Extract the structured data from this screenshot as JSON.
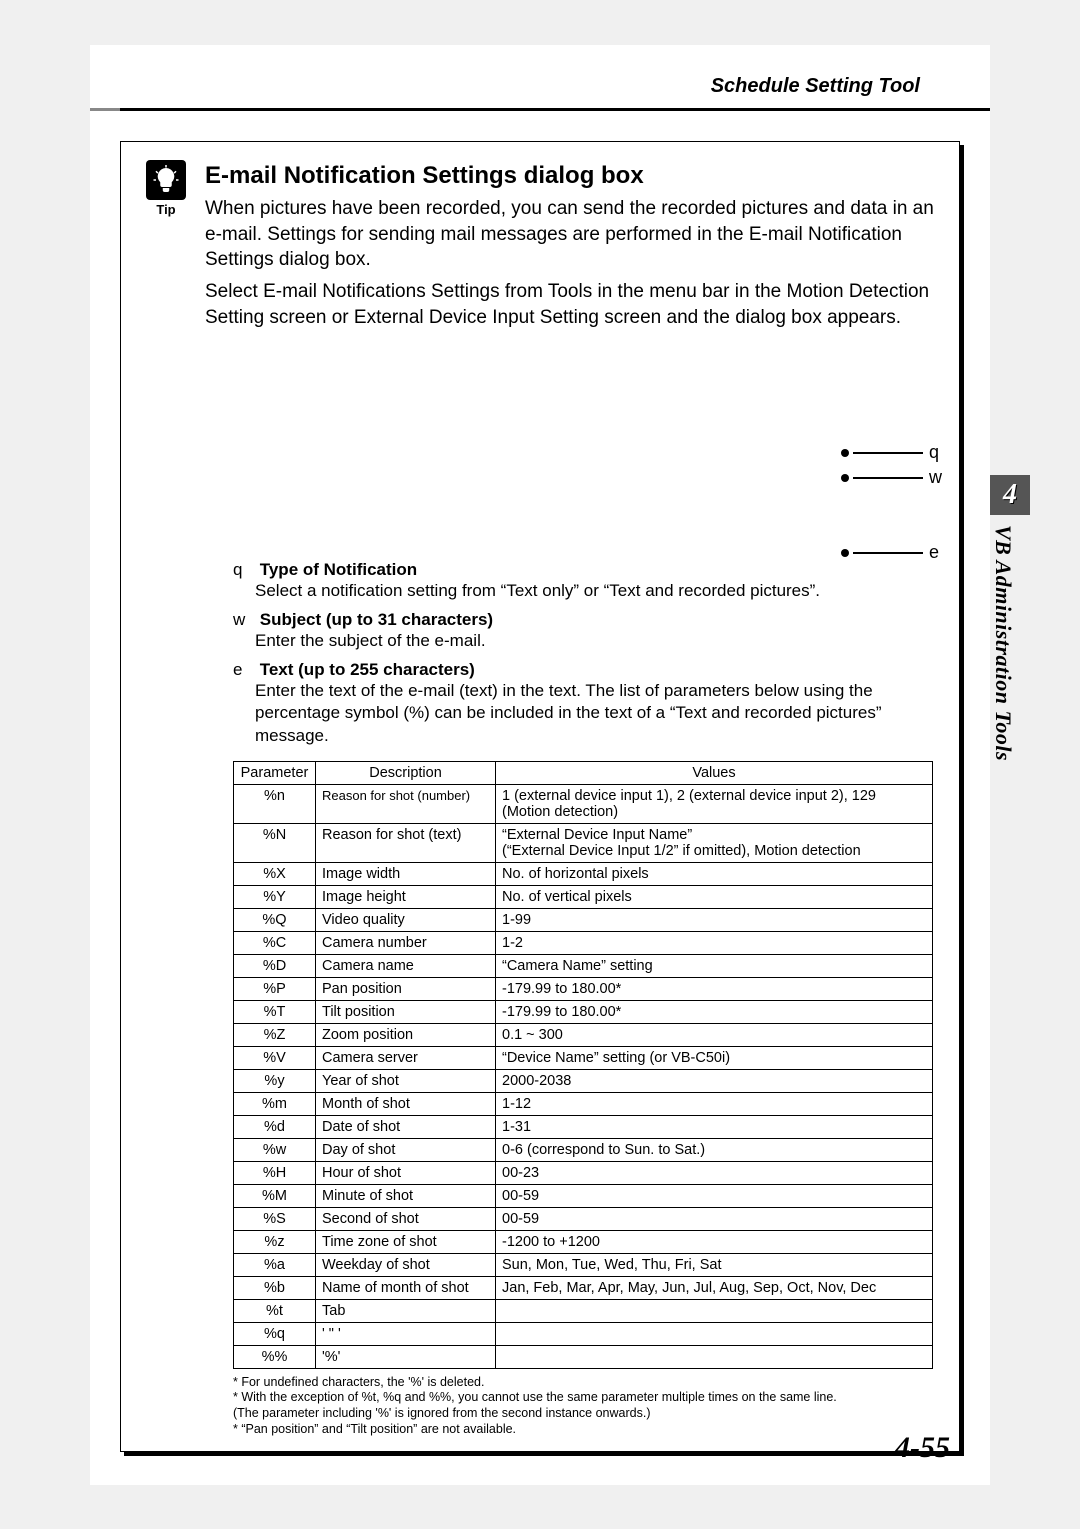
{
  "header": {
    "title": "Schedule Setting Tool"
  },
  "tip": {
    "label": "Tip"
  },
  "section": {
    "title": "E-mail Notification Settings dialog box",
    "p1": "When pictures have been recorded, you can send the recorded pictures and data in an e-mail. Settings for sending mail messages are performed in the E-mail Notification Settings dialog box.",
    "p2": "Select E-mail Notifications Settings from Tools in the menu bar in the Motion Detection Setting screen or External Device Input Setting screen and the dialog box appears."
  },
  "pointers": {
    "q": "q",
    "w": "w",
    "e": "e"
  },
  "params": {
    "q_mark": "q",
    "q_head": "Type of Notification",
    "q_desc": "Select a notification setting from “Text only” or “Text and recorded pictures”.",
    "w_mark": "w",
    "w_head": "Subject (up to 31 characters)",
    "w_desc": "Enter the subject of the e-mail.",
    "e_mark": "e",
    "e_head": "Text (up to 255 characters)",
    "e_desc": "Enter the text of the e-mail (text) in the text. The list of parameters below using the percentage symbol (%) can be included in the text of a “Text and recorded pictures” message."
  },
  "table": {
    "h1": "Parameter",
    "h2": "Description",
    "h3": "Values",
    "rows": [
      {
        "p": "%n",
        "d": "Reason for shot (number)",
        "v": "1 (external device input 1), 2 (external device input 2), 129 (Motion detection)"
      },
      {
        "p": "%N",
        "d": "Reason for shot (text)",
        "v": "“External Device Input Name”\n(“External Device Input 1/2” if omitted), Motion detection"
      },
      {
        "p": "%X",
        "d": "Image width",
        "v": "No. of horizontal pixels"
      },
      {
        "p": "%Y",
        "d": "Image height",
        "v": "No. of vertical pixels"
      },
      {
        "p": "%Q",
        "d": "Video quality",
        "v": "1-99"
      },
      {
        "p": "%C",
        "d": "Camera number",
        "v": "1-2"
      },
      {
        "p": "%D",
        "d": "Camera name",
        "v": "“Camera Name” setting"
      },
      {
        "p": "%P",
        "d": "Pan position",
        "v": "-179.99 to 180.00*"
      },
      {
        "p": "%T",
        "d": "Tilt position",
        "v": "-179.99 to 180.00*"
      },
      {
        "p": "%Z",
        "d": "Zoom position",
        "v": "0.1 ~ 300"
      },
      {
        "p": "%V",
        "d": "Camera server",
        "v": "“Device Name” setting (or VB-C50i)"
      },
      {
        "p": "%y",
        "d": "Year of shot",
        "v": "2000-2038"
      },
      {
        "p": "%m",
        "d": "Month of shot",
        "v": "1-12"
      },
      {
        "p": "%d",
        "d": "Date of shot",
        "v": "1-31"
      },
      {
        "p": "%w",
        "d": "Day of shot",
        "v": "0-6 (correspond to Sun. to Sat.)"
      },
      {
        "p": "%H",
        "d": "Hour of shot",
        "v": "00-23"
      },
      {
        "p": "%M",
        "d": "Minute of shot",
        "v": "00-59"
      },
      {
        "p": "%S",
        "d": "Second of shot",
        "v": "00-59"
      },
      {
        "p": "%z",
        "d": "Time zone of shot",
        "v": "-1200 to +1200"
      },
      {
        "p": "%a",
        "d": "Weekday of shot",
        "v": "Sun, Mon, Tue, Wed, Thu, Fri, Sat"
      },
      {
        "p": "%b",
        "d": "Name of month of shot",
        "v": "Jan, Feb, Mar, Apr, May, Jun, Jul, Aug, Sep, Oct, Nov, Dec"
      },
      {
        "p": "%t",
        "d": "Tab",
        "v": ""
      },
      {
        "p": "%q",
        "d": "' \" '",
        "v": ""
      },
      {
        "p": "%%",
        "d": "'%'",
        "v": ""
      }
    ]
  },
  "footnotes": {
    "f1": "* For undefined characters, the '%' is deleted.",
    "f2": "* With the exception of %t, %q and %%, you cannot use the same parameter multiple times on the same line.",
    "f3": "(The parameter including '%' is ignored from the second instance onwards.)",
    "f4": "* “Pan position” and “Tilt position” are not available."
  },
  "sidebar": {
    "num": "4",
    "text": "VB Administration Tools"
  },
  "pagenum": "4-55"
}
